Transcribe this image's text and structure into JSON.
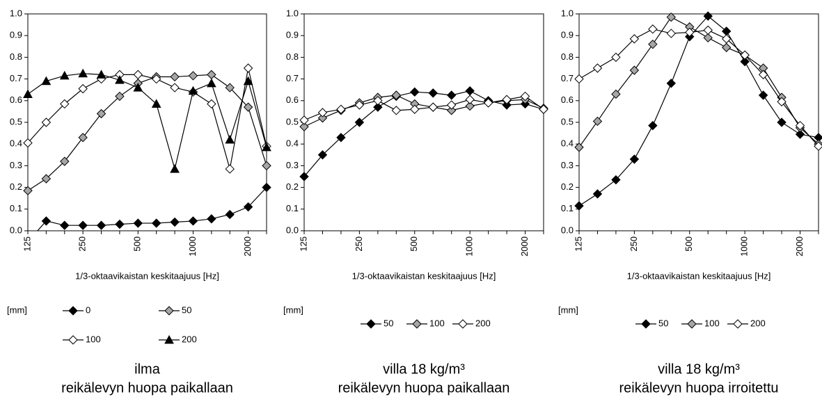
{
  "chart_data": [
    {
      "type": "line",
      "title": "ilma",
      "subtitle": "reikälevyn huopa paikallaan",
      "x_label": "1/3-oktaavikaistan keskitaajuus [Hz]",
      "legend_title": "[mm]",
      "legend_columns": 2,
      "categories": [
        "125",
        null,
        null,
        "250",
        null,
        null,
        "500",
        null,
        null,
        "1000",
        null,
        null,
        "2000",
        null
      ],
      "ylim": [
        0,
        1
      ],
      "yticks": [
        {
          "value": 0,
          "label": "0.0"
        },
        {
          "value": 0.1,
          "label": "0.1"
        },
        {
          "value": 0.2,
          "label": "0.2"
        },
        {
          "value": 0.3,
          "label": "0.3"
        },
        {
          "value": 0.4,
          "label": "0.4"
        },
        {
          "value": 0.5,
          "label": "0.5"
        },
        {
          "value": 0.6,
          "label": "0.6"
        },
        {
          "value": 0.7,
          "label": "0.7"
        },
        {
          "value": 0.8,
          "label": "0.8"
        },
        {
          "value": 0.9,
          "label": "0.9"
        },
        {
          "value": 1,
          "label": "1.0"
        }
      ],
      "series": [
        {
          "name": "0",
          "color": "#000000",
          "marker": "diamond",
          "values": [
            -0.05,
            0.045,
            0.025,
            0.025,
            0.025,
            0.03,
            0.035,
            0.035,
            0.04,
            0.045,
            0.055,
            0.075,
            0.11,
            0.2
          ]
        },
        {
          "name": "50",
          "color": "#a6a6a6",
          "marker": "diamond",
          "values": [
            0.185,
            0.24,
            0.32,
            0.43,
            0.54,
            0.62,
            0.68,
            0.71,
            0.71,
            0.715,
            0.72,
            0.66,
            0.57,
            0.3
          ]
        },
        {
          "name": "100",
          "color": "#ffffff",
          "marker": "diamond",
          "values": [
            0.405,
            0.5,
            0.585,
            0.655,
            0.7,
            0.72,
            0.72,
            0.7,
            0.66,
            0.64,
            0.585,
            0.285,
            0.75,
            0.39
          ]
        },
        {
          "name": "200",
          "color": "#000000",
          "marker": "triangle",
          "values": [
            0.63,
            0.69,
            0.715,
            0.725,
            0.72,
            0.695,
            0.66,
            0.585,
            0.285,
            0.645,
            0.68,
            0.42,
            0.69,
            0.385
          ]
        }
      ]
    },
    {
      "type": "line",
      "title": "villa 18 kg/m³",
      "subtitle": "reikälevyn huopa paikallaan",
      "x_label": "1/3-oktaavikaistan keskitaajuus [Hz]",
      "legend_title": "[mm]",
      "legend_columns": 3,
      "categories": [
        "125",
        null,
        null,
        "250",
        null,
        null,
        "500",
        null,
        null,
        "1000",
        null,
        null,
        "2000",
        null
      ],
      "ylim": [
        0,
        1
      ],
      "yticks": [
        {
          "value": 0,
          "label": "0.0"
        },
        {
          "value": 0.1,
          "label": "0.1"
        },
        {
          "value": 0.2,
          "label": "0.2"
        },
        {
          "value": 0.3,
          "label": "0.3"
        },
        {
          "value": 0.4,
          "label": "0.4"
        },
        {
          "value": 0.5,
          "label": "0.5"
        },
        {
          "value": 0.6,
          "label": "0.6"
        },
        {
          "value": 0.7,
          "label": "0.7"
        },
        {
          "value": 0.8,
          "label": "0.8"
        },
        {
          "value": 0.9,
          "label": "0.9"
        },
        {
          "value": 1,
          "label": "1.0"
        }
      ],
      "series": [
        {
          "name": "50",
          "color": "#000000",
          "marker": "diamond",
          "values": [
            0.25,
            0.35,
            0.43,
            0.5,
            0.57,
            0.62,
            0.64,
            0.635,
            0.625,
            0.645,
            0.6,
            0.58,
            0.585,
            0.56
          ]
        },
        {
          "name": "100",
          "color": "#a6a6a6",
          "marker": "diamond",
          "values": [
            0.48,
            0.52,
            0.555,
            0.59,
            0.615,
            0.625,
            0.585,
            0.57,
            0.555,
            0.575,
            0.59,
            0.6,
            0.605,
            0.565
          ]
        },
        {
          "name": "200",
          "color": "#ffffff",
          "marker": "diamond",
          "values": [
            0.51,
            0.545,
            0.56,
            0.58,
            0.6,
            0.555,
            0.56,
            0.57,
            0.58,
            0.605,
            0.59,
            0.605,
            0.62,
            0.56
          ]
        }
      ]
    },
    {
      "type": "line",
      "title": "villa 18 kg/m³",
      "subtitle": "reikälevyn huopa irroitettu",
      "x_label": "1/3-oktaavikaistan keskitaajuus [Hz]",
      "legend_title": "[mm]",
      "legend_columns": 3,
      "categories": [
        "125",
        null,
        null,
        "250",
        null,
        null,
        "500",
        null,
        null,
        "1000",
        null,
        null,
        "2000",
        null
      ],
      "ylim": [
        0,
        1
      ],
      "yticks": [
        {
          "value": 0,
          "label": "0.0"
        },
        {
          "value": 0.1,
          "label": "0.1"
        },
        {
          "value": 0.2,
          "label": "0.2"
        },
        {
          "value": 0.3,
          "label": "0.3"
        },
        {
          "value": 0.4,
          "label": "0.4"
        },
        {
          "value": 0.5,
          "label": "0.5"
        },
        {
          "value": 0.6,
          "label": "0.6"
        },
        {
          "value": 0.7,
          "label": "0.7"
        },
        {
          "value": 0.8,
          "label": "0.8"
        },
        {
          "value": 0.9,
          "label": "0.9"
        },
        {
          "value": 1,
          "label": "1.0"
        }
      ],
      "series": [
        {
          "name": "50",
          "color": "#000000",
          "marker": "diamond",
          "values": [
            0.115,
            0.17,
            0.235,
            0.33,
            0.485,
            0.68,
            0.895,
            0.99,
            0.92,
            0.78,
            0.625,
            0.5,
            0.445,
            0.43
          ]
        },
        {
          "name": "100",
          "color": "#a6a6a6",
          "marker": "diamond",
          "values": [
            0.385,
            0.505,
            0.63,
            0.74,
            0.86,
            0.985,
            0.94,
            0.89,
            0.845,
            0.81,
            0.75,
            0.615,
            0.475,
            0.4
          ]
        },
        {
          "name": "200",
          "color": "#ffffff",
          "marker": "diamond",
          "values": [
            0.7,
            0.75,
            0.8,
            0.885,
            0.93,
            0.91,
            0.915,
            0.925,
            0.885,
            0.81,
            0.72,
            0.595,
            0.485,
            0.39
          ]
        }
      ]
    }
  ]
}
